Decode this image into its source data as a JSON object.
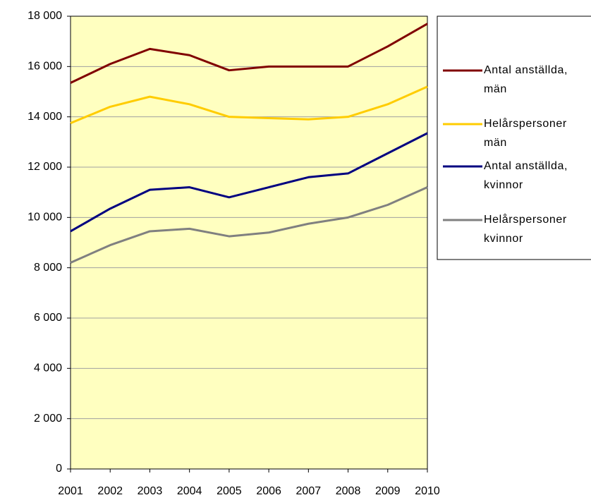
{
  "chart_data": {
    "type": "line",
    "categories": [
      "2001",
      "2002",
      "2003",
      "2004",
      "2005",
      "2006",
      "2007",
      "2008",
      "2009",
      "2010"
    ],
    "series": [
      {
        "name": "Antal anställda, män",
        "color": "#800000",
        "values": [
          15350,
          16100,
          16700,
          16450,
          15850,
          16000,
          16000,
          16000,
          16800,
          17700
        ]
      },
      {
        "name": "Helårspersoner män",
        "color": "#ffcc00",
        "values": [
          13750,
          14400,
          14800,
          14500,
          14000,
          13950,
          13900,
          14000,
          14500,
          15200
        ]
      },
      {
        "name": "Antal anställda, kvinnor",
        "color": "#000080",
        "values": [
          9450,
          10350,
          11100,
          11200,
          10800,
          11200,
          11600,
          11750,
          12550,
          13350
        ]
      },
      {
        "name": "Helårspersoner kvinnor",
        "color": "#808080",
        "values": [
          8200,
          8900,
          9450,
          9550,
          9250,
          9400,
          9750,
          10000,
          10500,
          11200
        ]
      }
    ],
    "ylim": [
      0,
      18000
    ],
    "yticks": [
      0,
      {
        "value": 2000,
        "label": "2 000"
      },
      {
        "value": 4000,
        "label": "4 000"
      },
      {
        "value": 6000,
        "label": "6 000"
      },
      {
        "value": 8000,
        "label": "8 000"
      },
      {
        "value": 10000,
        "label": "10 000"
      },
      {
        "value": 12000,
        "label": "12 000"
      },
      {
        "value": 14000,
        "label": "14 000"
      },
      {
        "value": 16000,
        "label": "16 000"
      },
      {
        "value": 18000,
        "label": "18 000"
      }
    ],
    "grid": true,
    "legend": "right"
  }
}
